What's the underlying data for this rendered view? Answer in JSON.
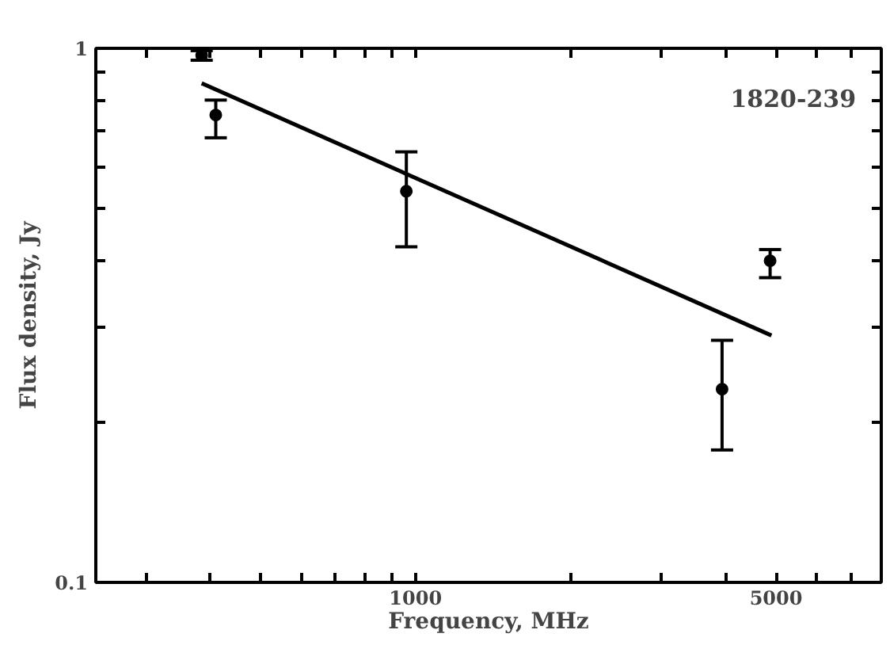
{
  "chart_data": {
    "type": "scatter",
    "xlabel": "Frequency, MHz",
    "ylabel": "Flux density, Jy",
    "annotations": [
      "1820-239"
    ],
    "log": "xy",
    "grid": false,
    "xlim": [
      240,
      8000
    ],
    "xticks": [
      {
        "value": 300,
        "label": null
      },
      {
        "value": 400,
        "label": null
      },
      {
        "value": 500,
        "label": null
      },
      {
        "value": 600,
        "label": null
      },
      {
        "value": 700,
        "label": null
      },
      {
        "value": 800,
        "label": null
      },
      {
        "value": 900,
        "label": null
      },
      1000,
      {
        "value": 2000,
        "label": null
      },
      {
        "value": 3000,
        "label": null
      },
      {
        "value": 4000,
        "label": null
      },
      5000,
      {
        "value": 6000,
        "label": null
      },
      {
        "value": 7000,
        "label": null
      }
    ],
    "ylim": [
      0.1,
      1
    ],
    "yticks": [
      0.1,
      {
        "value": 0.2,
        "label": null
      },
      {
        "value": 0.3,
        "label": null
      },
      {
        "value": 0.4,
        "label": null
      },
      {
        "value": 0.5,
        "label": null
      },
      {
        "value": 0.6,
        "label": null
      },
      {
        "value": 0.7,
        "label": null
      },
      {
        "value": 0.8,
        "label": null
      },
      {
        "value": 0.9,
        "label": null
      },
      1
    ],
    "series": [
      {
        "marker": "circle",
        "color": "#000000",
        "x": [
          385,
          410,
          960,
          3930,
          4870
        ],
        "values": [
          0.97,
          0.75,
          0.54,
          0.23,
          0.4
        ],
        "errors": [
          [
            0.95,
            0.99
          ],
          [
            0.68,
            0.8
          ],
          [
            0.425,
            0.64
          ],
          [
            0.177,
            0.284
          ],
          [
            0.372,
            0.42
          ]
        ]
      },
      {
        "type": "line",
        "marker": "none",
        "color": "#000000",
        "x": [
          385,
          4900
        ],
        "values": [
          0.86,
          0.29
        ]
      }
    ]
  }
}
